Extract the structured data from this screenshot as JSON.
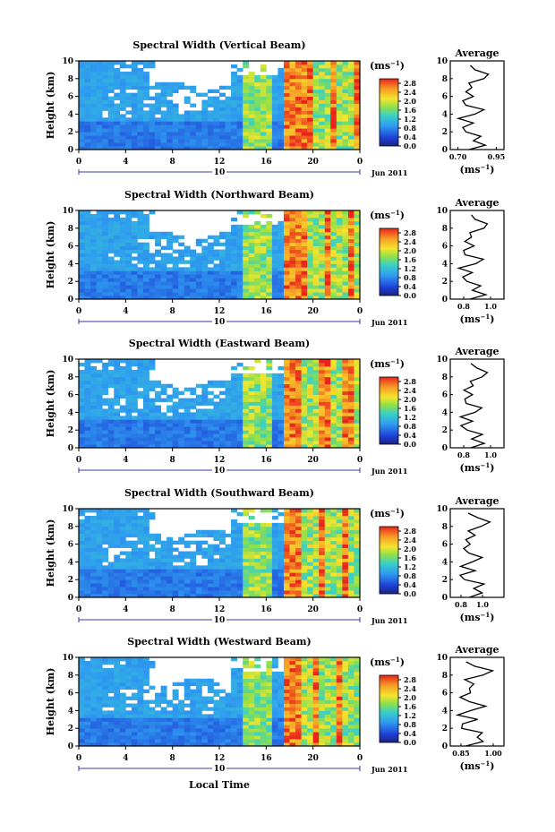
{
  "chart_data": {
    "type": "heatmap",
    "x_label": "Local Time",
    "date_label": "Jun 2011",
    "day_label": "10",
    "y_label": "Height (km)",
    "x_range": [
      0,
      24
    ],
    "x_ticks": [
      "0",
      "4",
      "8",
      "12",
      "16",
      "20",
      "0"
    ],
    "y_range": [
      0,
      10
    ],
    "y_ticks": [
      "0",
      "2",
      "4",
      "6",
      "8",
      "10"
    ],
    "colorbar": {
      "unit_label": "(ms",
      "unit_exponent": "−1",
      "unit_close": ")",
      "range": [
        0,
        3.0
      ],
      "ticks": [
        "0.0",
        "0.4",
        "0.8",
        "1.2",
        "1.6",
        "2.0",
        "2.4",
        "2.8"
      ]
    },
    "average_title": "Average",
    "average_unit": "(ms",
    "average_exponent": "−1",
    "average_unit_close": ")",
    "panels": [
      {
        "title": "Spectral Width (Vertical Beam)",
        "avg_ticks": [
          "0.70",
          "0.95"
        ],
        "avg_range": [
          0.65,
          1.0
        ]
      },
      {
        "title": "Spectral Width (Northward Beam)",
        "avg_ticks": [
          "0.8",
          "1.0"
        ],
        "avg_range": [
          0.7,
          1.1
        ]
      },
      {
        "title": "Spectral Width (Eastward Beam)",
        "avg_ticks": [
          "0.8",
          "1.0"
        ],
        "avg_range": [
          0.7,
          1.1
        ]
      },
      {
        "title": "Spectral Width (Southward Beam)",
        "avg_ticks": [
          "0.8",
          "1.0"
        ],
        "avg_range": [
          0.7,
          1.2
        ]
      },
      {
        "title": "Spectral Width (Westward Beam)",
        "avg_ticks": [
          "0.85",
          "1.00"
        ],
        "avg_range": [
          0.8,
          1.05
        ]
      }
    ],
    "average_profile": {
      "height_km": [
        0,
        0.5,
        1,
        1.5,
        2,
        2.5,
        3,
        3.5,
        4,
        4.5,
        5,
        5.5,
        6,
        6.5,
        7,
        7.5,
        8,
        8.5,
        9,
        9.5
      ],
      "width_ms": [
        0.82,
        0.93,
        0.85,
        0.9,
        0.8,
        0.78,
        0.85,
        0.75,
        0.86,
        0.92,
        0.8,
        0.78,
        0.85,
        0.8,
        0.84,
        0.82,
        0.92,
        0.95,
        0.86,
        0.83
      ]
    }
  }
}
